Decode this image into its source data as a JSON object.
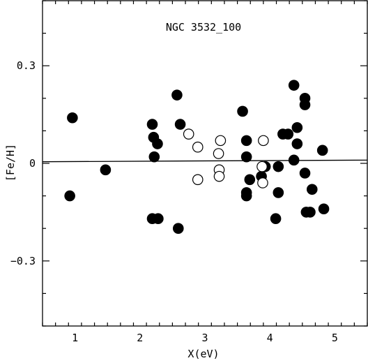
{
  "chart_data": {
    "type": "scatter",
    "title": "NGC 3532_100",
    "xlabel": "X(eV)",
    "ylabel": "[Fe/H]",
    "xlim": [
      0.5,
      5.5
    ],
    "ylim": [
      -0.5,
      0.5
    ],
    "xticks": [
      1,
      2,
      3,
      4,
      5
    ],
    "xtick_labels": [
      "1",
      "2",
      "3",
      "4",
      "5"
    ],
    "yticks": [
      -0.3,
      0,
      0.3
    ],
    "ytick_labels": [
      "−0.3",
      "0",
      "0.3"
    ],
    "x_minor_step": 0.2,
    "y_minor_step": 0.1,
    "grid": false,
    "legend": "none",
    "reference_line": {
      "x": [
        0.5,
        5.5
      ],
      "y": [
        0.005,
        0.01
      ]
    },
    "series": [
      {
        "marker": "filled-circle",
        "color": "#000000",
        "points": [
          [
            0.92,
            -0.1
          ],
          [
            0.96,
            0.14
          ],
          [
            1.47,
            -0.02
          ],
          [
            2.19,
            0.12
          ],
          [
            2.21,
            0.08
          ],
          [
            2.22,
            0.02
          ],
          [
            2.19,
            -0.17
          ],
          [
            2.28,
            -0.17
          ],
          [
            2.27,
            0.06
          ],
          [
            2.57,
            0.21
          ],
          [
            2.62,
            0.12
          ],
          [
            2.59,
            -0.2
          ],
          [
            3.58,
            0.16
          ],
          [
            3.64,
            0.07
          ],
          [
            3.64,
            0.02
          ],
          [
            3.64,
            -0.09
          ],
          [
            3.64,
            -0.1
          ],
          [
            3.69,
            -0.05
          ],
          [
            3.87,
            -0.04
          ],
          [
            3.93,
            -0.01
          ],
          [
            4.09,
            -0.17
          ],
          [
            4.13,
            -0.01
          ],
          [
            4.13,
            -0.09
          ],
          [
            4.2,
            0.09
          ],
          [
            4.28,
            0.09
          ],
          [
            4.37,
            0.24
          ],
          [
            4.37,
            0.01
          ],
          [
            4.42,
            0.11
          ],
          [
            4.42,
            0.06
          ],
          [
            4.54,
            0.2
          ],
          [
            4.54,
            0.18
          ],
          [
            4.54,
            -0.03
          ],
          [
            4.56,
            -0.15
          ],
          [
            4.62,
            -0.15
          ],
          [
            4.65,
            -0.08
          ],
          [
            4.81,
            0.04
          ],
          [
            4.83,
            -0.14
          ]
        ]
      },
      {
        "marker": "open-circle",
        "color": "#000000",
        "points": [
          [
            2.75,
            0.09
          ],
          [
            2.89,
            0.05
          ],
          [
            2.89,
            -0.05
          ],
          [
            3.21,
            0.03
          ],
          [
            3.22,
            -0.02
          ],
          [
            3.22,
            -0.04
          ],
          [
            3.24,
            0.07
          ],
          [
            3.9,
            0.07
          ],
          [
            3.88,
            -0.01
          ],
          [
            3.89,
            -0.06
          ]
        ]
      }
    ]
  }
}
